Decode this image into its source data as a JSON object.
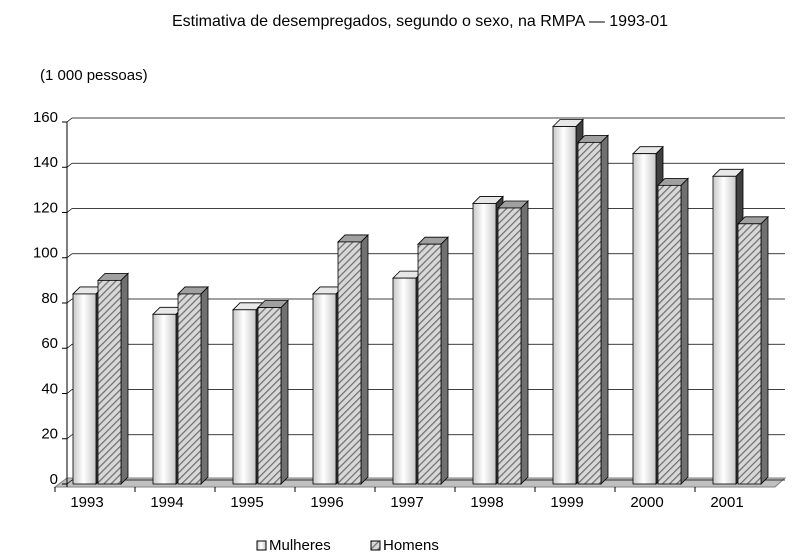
{
  "chart_data": {
    "type": "bar3d",
    "title": "Estimativa de desempregados, segundo o sexo, na RMPA — 1993-01",
    "subtitle": "(1 000 pessoas)",
    "categories": [
      "1993",
      "1994",
      "1995",
      "1996",
      "1997",
      "1998",
      "1999",
      "2000",
      "2001"
    ],
    "series": [
      {
        "name": "Mulheres",
        "color": "#c8c8c8",
        "values": [
          84,
          75,
          77,
          84,
          91,
          124,
          158,
          146,
          136
        ]
      },
      {
        "name": "Homens",
        "color": "#707070",
        "values": [
          90,
          84,
          78,
          107,
          106,
          122,
          151,
          132,
          115
        ]
      }
    ],
    "ylim": [
      0,
      160
    ],
    "yticks": [
      0,
      20,
      40,
      60,
      80,
      100,
      120,
      140,
      160
    ],
    "grid": true
  }
}
